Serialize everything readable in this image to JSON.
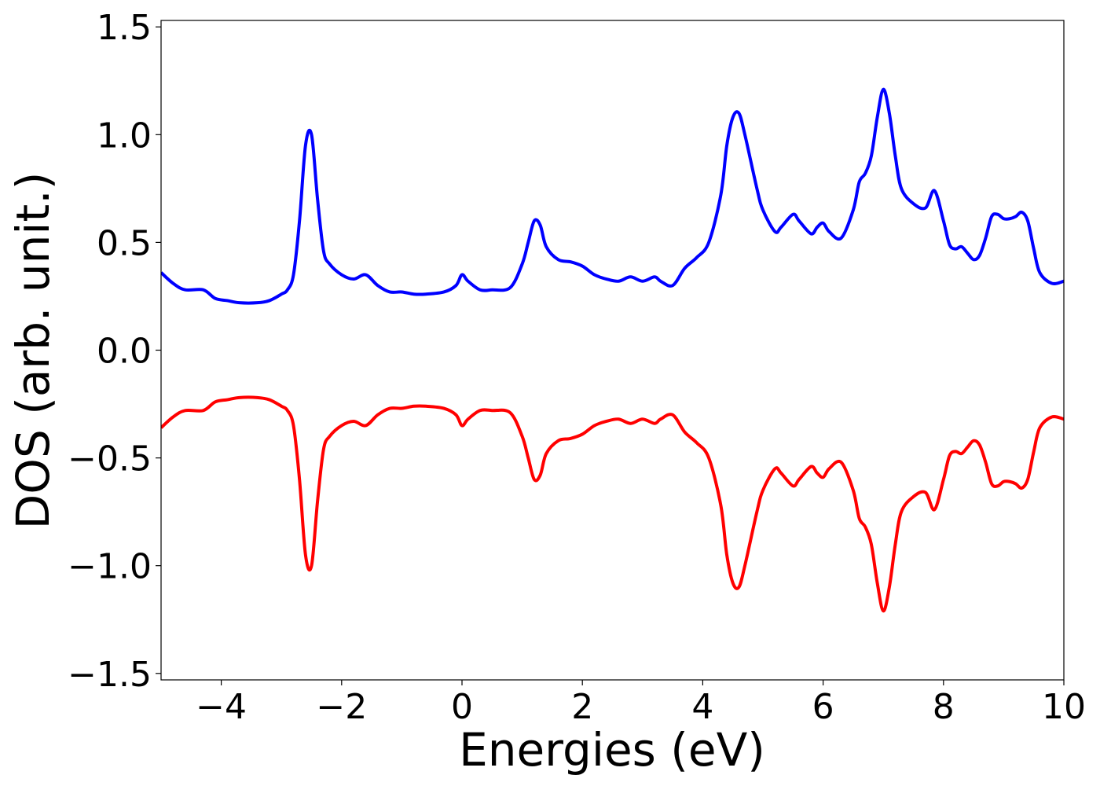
{
  "chart_data": {
    "type": "line",
    "title": "",
    "xlabel": "Energies (eV)",
    "ylabel": "DOS (arb. unit.)",
    "xlim": [
      -5,
      10
    ],
    "ylim": [
      -1.53,
      1.53
    ],
    "xticks": [
      -4,
      -2,
      0,
      2,
      4,
      6,
      8,
      10
    ],
    "xtick_labels": [
      "−4",
      "−2",
      "0",
      "2",
      "4",
      "6",
      "8",
      "10"
    ],
    "yticks": [
      -1.5,
      -1.0,
      -0.5,
      0.0,
      0.5,
      1.0,
      1.5
    ],
    "ytick_labels": [
      "−1.5",
      "−1.0",
      "−0.5",
      "0.0",
      "0.5",
      "1.0",
      "1.5"
    ],
    "grid": false,
    "legend": "none",
    "series": [
      {
        "color": "#0000ff",
        "x": [
          -5.0,
          -4.8,
          -4.6,
          -4.3,
          -4.1,
          -3.9,
          -3.7,
          -3.4,
          -3.2,
          -3.0,
          -2.9,
          -2.8,
          -2.7,
          -2.6,
          -2.5,
          -2.4,
          -2.3,
          -2.2,
          -2.0,
          -1.8,
          -1.6,
          -1.4,
          -1.2,
          -1.0,
          -0.8,
          -0.6,
          -0.3,
          -0.1,
          0.0,
          0.1,
          0.3,
          0.5,
          0.8,
          1.0,
          1.1,
          1.2,
          1.3,
          1.4,
          1.6,
          1.8,
          2.0,
          2.2,
          2.4,
          2.6,
          2.8,
          3.0,
          3.2,
          3.3,
          3.5,
          3.7,
          3.9,
          4.1,
          4.3,
          4.4,
          4.5,
          4.6,
          4.7,
          4.9,
          5.0,
          5.2,
          5.3,
          5.5,
          5.6,
          5.8,
          5.9,
          6.0,
          6.1,
          6.3,
          6.5,
          6.6,
          6.7,
          6.8,
          6.9,
          7.0,
          7.1,
          7.2,
          7.3,
          7.5,
          7.7,
          7.85,
          8.0,
          8.1,
          8.2,
          8.3,
          8.4,
          8.5,
          8.6,
          8.7,
          8.8,
          8.9,
          9.0,
          9.1,
          9.2,
          9.3,
          9.4,
          9.5,
          9.6,
          9.8,
          10.0
        ],
        "y": [
          0.36,
          0.31,
          0.28,
          0.28,
          0.24,
          0.23,
          0.22,
          0.22,
          0.23,
          0.26,
          0.28,
          0.35,
          0.6,
          0.95,
          1.0,
          0.7,
          0.46,
          0.4,
          0.35,
          0.33,
          0.35,
          0.3,
          0.27,
          0.27,
          0.26,
          0.26,
          0.27,
          0.3,
          0.35,
          0.32,
          0.28,
          0.28,
          0.29,
          0.4,
          0.5,
          0.6,
          0.58,
          0.48,
          0.42,
          0.41,
          0.39,
          0.35,
          0.33,
          0.32,
          0.34,
          0.32,
          0.34,
          0.32,
          0.3,
          0.38,
          0.43,
          0.5,
          0.72,
          0.95,
          1.08,
          1.1,
          1.0,
          0.75,
          0.65,
          0.55,
          0.57,
          0.63,
          0.6,
          0.54,
          0.57,
          0.59,
          0.55,
          0.52,
          0.65,
          0.78,
          0.82,
          0.9,
          1.08,
          1.21,
          1.1,
          0.9,
          0.75,
          0.68,
          0.66,
          0.74,
          0.6,
          0.49,
          0.47,
          0.48,
          0.45,
          0.42,
          0.44,
          0.52,
          0.62,
          0.63,
          0.61,
          0.61,
          0.62,
          0.64,
          0.6,
          0.47,
          0.36,
          0.31,
          0.32
        ]
      },
      {
        "color": "#ff0000",
        "x": [
          -5.0,
          -4.8,
          -4.6,
          -4.3,
          -4.1,
          -3.9,
          -3.7,
          -3.4,
          -3.2,
          -3.0,
          -2.9,
          -2.8,
          -2.7,
          -2.6,
          -2.5,
          -2.4,
          -2.3,
          -2.2,
          -2.0,
          -1.8,
          -1.6,
          -1.4,
          -1.2,
          -1.0,
          -0.8,
          -0.6,
          -0.3,
          -0.1,
          0.0,
          0.1,
          0.3,
          0.5,
          0.8,
          1.0,
          1.1,
          1.2,
          1.3,
          1.4,
          1.6,
          1.8,
          2.0,
          2.2,
          2.4,
          2.6,
          2.8,
          3.0,
          3.2,
          3.3,
          3.5,
          3.7,
          3.9,
          4.1,
          4.3,
          4.4,
          4.5,
          4.6,
          4.7,
          4.9,
          5.0,
          5.2,
          5.3,
          5.5,
          5.6,
          5.8,
          5.9,
          6.0,
          6.1,
          6.3,
          6.5,
          6.6,
          6.7,
          6.8,
          6.9,
          7.0,
          7.1,
          7.2,
          7.3,
          7.5,
          7.7,
          7.85,
          8.0,
          8.1,
          8.2,
          8.3,
          8.4,
          8.5,
          8.6,
          8.7,
          8.8,
          8.9,
          9.0,
          9.1,
          9.2,
          9.3,
          9.4,
          9.5,
          9.6,
          9.8,
          10.0
        ],
        "y": [
          -0.36,
          -0.31,
          -0.28,
          -0.28,
          -0.24,
          -0.23,
          -0.22,
          -0.22,
          -0.23,
          -0.26,
          -0.28,
          -0.35,
          -0.6,
          -0.95,
          -1.0,
          -0.7,
          -0.46,
          -0.4,
          -0.35,
          -0.33,
          -0.35,
          -0.3,
          -0.27,
          -0.27,
          -0.26,
          -0.26,
          -0.27,
          -0.3,
          -0.35,
          -0.32,
          -0.28,
          -0.28,
          -0.29,
          -0.4,
          -0.5,
          -0.6,
          -0.58,
          -0.48,
          -0.42,
          -0.41,
          -0.39,
          -0.35,
          -0.33,
          -0.32,
          -0.34,
          -0.32,
          -0.34,
          -0.32,
          -0.3,
          -0.38,
          -0.43,
          -0.5,
          -0.72,
          -0.95,
          -1.08,
          -1.1,
          -1.0,
          -0.75,
          -0.65,
          -0.55,
          -0.57,
          -0.63,
          -0.6,
          -0.54,
          -0.57,
          -0.59,
          -0.55,
          -0.52,
          -0.65,
          -0.78,
          -0.82,
          -0.9,
          -1.08,
          -1.21,
          -1.1,
          -0.9,
          -0.75,
          -0.68,
          -0.66,
          -0.74,
          -0.6,
          -0.49,
          -0.47,
          -0.48,
          -0.45,
          -0.42,
          -0.44,
          -0.52,
          -0.62,
          -0.63,
          -0.61,
          -0.61,
          -0.62,
          -0.64,
          -0.6,
          -0.47,
          -0.36,
          -0.31,
          -0.32
        ]
      }
    ]
  }
}
